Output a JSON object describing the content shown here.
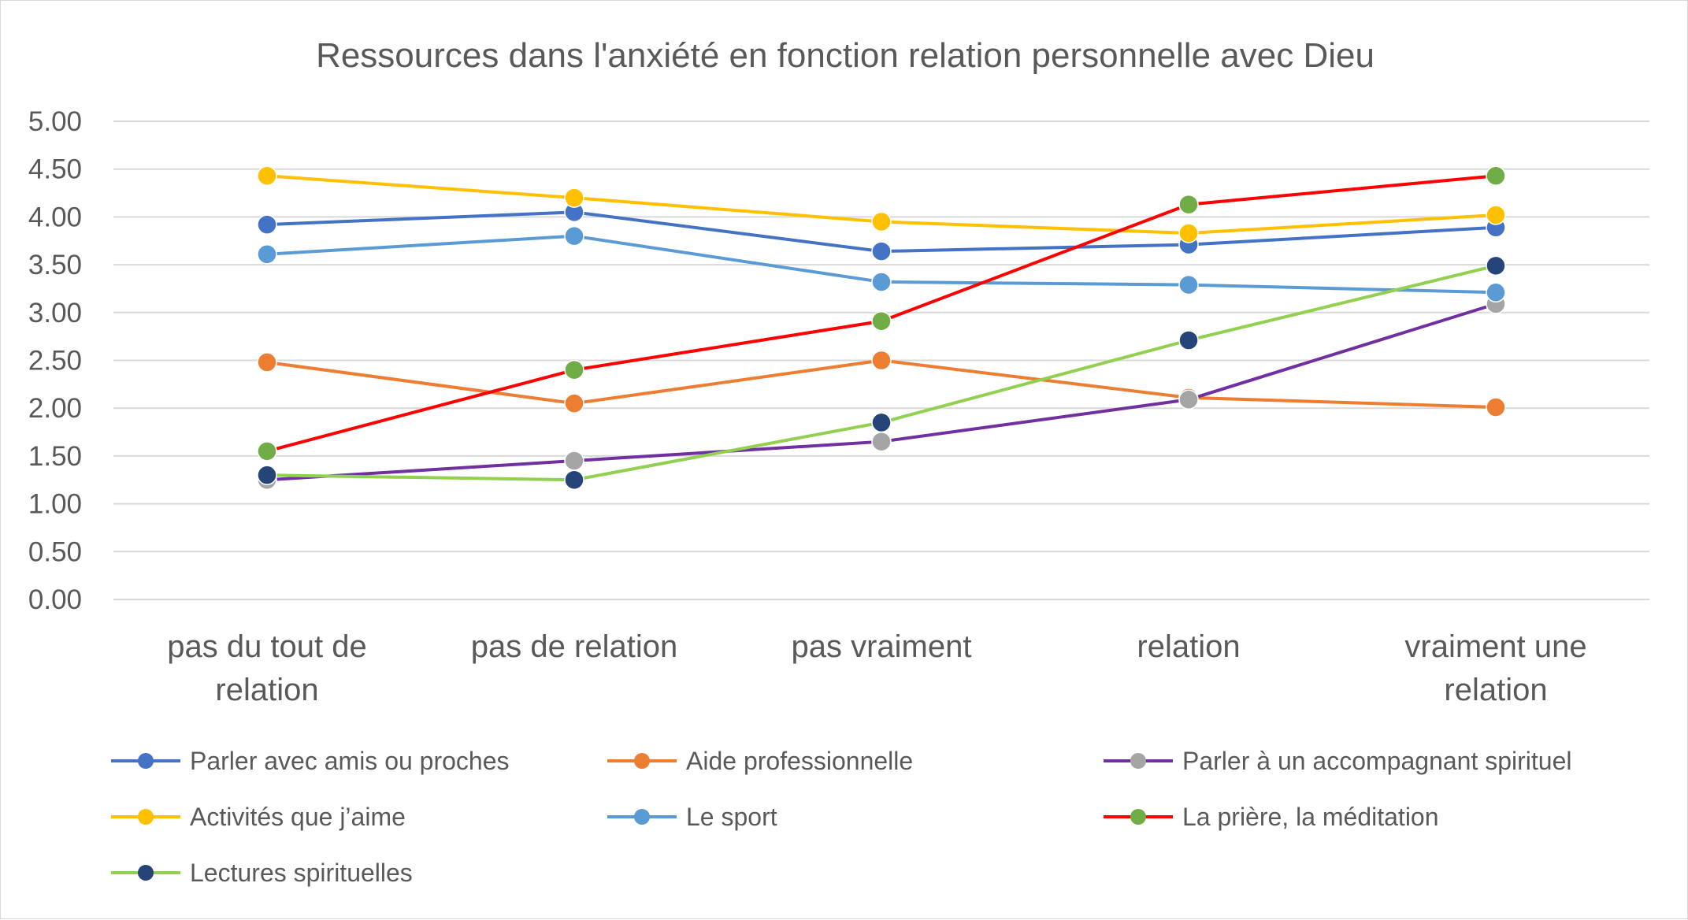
{
  "chart_data": {
    "type": "line",
    "title": "Ressources dans l'anxiété en fonction relation personnelle avec Dieu",
    "categories": [
      [
        "pas du tout de",
        "relation"
      ],
      [
        "pas de relation"
      ],
      [
        "pas vraiment"
      ],
      [
        "relation"
      ],
      [
        "vraiment une",
        "relation"
      ]
    ],
    "ylim": [
      0,
      5
    ],
    "yticks": [
      "0.00",
      "0.50",
      "1.00",
      "1.50",
      "2.00",
      "2.50",
      "3.00",
      "3.50",
      "4.00",
      "4.50",
      "5.00"
    ],
    "grid": true,
    "legend_position": "bottom",
    "series": [
      {
        "name": "Parler avec amis ou proches",
        "line_color": "#4472c4",
        "values": [
          3.92,
          4.05,
          3.64,
          3.71,
          3.89
        ],
        "marker_colors": [
          "#4472c4",
          "#4472c4",
          "#4472c4",
          "#4472c4",
          "#4472c4"
        ]
      },
      {
        "name": "Aide professionnelle",
        "line_color": "#ed7d31",
        "values": [
          2.48,
          2.05,
          2.5,
          2.11,
          2.01
        ],
        "marker_colors": [
          "#ed7d31",
          "#ed7d31",
          "#ed7d31",
          "#ed7d31",
          "#ed7d31"
        ]
      },
      {
        "name": "Parler à un accompagnant spirituel",
        "line_color": "#7030a0",
        "values": [
          1.25,
          1.45,
          1.65,
          2.09,
          3.09
        ],
        "marker_colors": [
          "#a5a5a5",
          "#a5a5a5",
          "#a5a5a5",
          "#a5a5a5",
          "#a5a5a5"
        ]
      },
      {
        "name": "Activités que j’aime",
        "line_color": "#ffc000",
        "values": [
          4.43,
          4.2,
          3.95,
          3.83,
          4.02
        ],
        "marker_colors": [
          "#ffc000",
          "#ffc000",
          "#ffc000",
          "#ffc000",
          "#ffc000"
        ]
      },
      {
        "name": "Le sport",
        "line_color": "#5b9bd5",
        "values": [
          3.61,
          3.8,
          3.32,
          3.29,
          3.21
        ],
        "marker_colors": [
          "#5b9bd5",
          "#5b9bd5",
          "#5b9bd5",
          "#5b9bd5",
          "#5b9bd5"
        ]
      },
      {
        "name": "La prière, la méditation",
        "line_color": "#ff0000",
        "values": [
          1.55,
          2.4,
          2.91,
          4.13,
          4.43
        ],
        "marker_colors": [
          "#70ad47",
          "#70ad47",
          "#70ad47",
          "#70ad47",
          "#70ad47"
        ]
      },
      {
        "name": "Lectures spirituelles",
        "line_color": "#92d050",
        "values": [
          1.3,
          1.25,
          1.85,
          2.71,
          3.49
        ],
        "marker_colors": [
          "#264478",
          "#264478",
          "#264478",
          "#264478",
          "#264478"
        ]
      }
    ]
  }
}
